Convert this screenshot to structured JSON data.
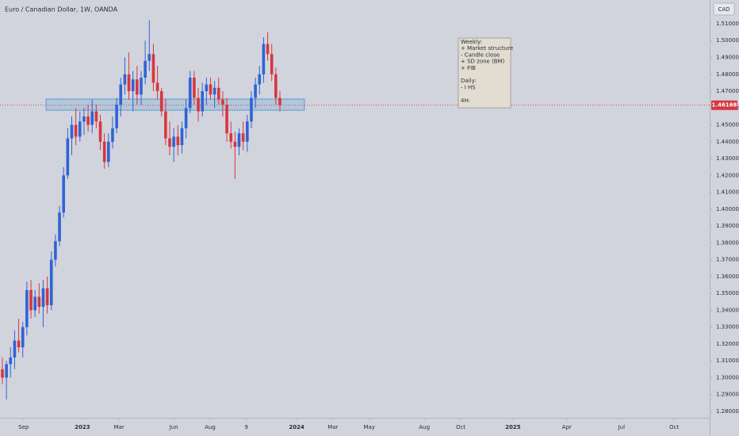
{
  "chart_data": {
    "type": "candlestick",
    "title": "Euro / Canadian Dollar, 1W, OANDA",
    "currency_label": "CAD",
    "up_color": "#2f63d6",
    "down_color": "#d9363e",
    "x": [
      0,
      1,
      2,
      3,
      4,
      5,
      6,
      7,
      8,
      9,
      10,
      11,
      12,
      13,
      14,
      15,
      16,
      17,
      18,
      19,
      20,
      21,
      22,
      23,
      24,
      25,
      26,
      27,
      28,
      29,
      30,
      31,
      32,
      33,
      34,
      35,
      36,
      37,
      38,
      39,
      40,
      41,
      42,
      43,
      44,
      45,
      46,
      47,
      48,
      49,
      50,
      51,
      52,
      53,
      54,
      55,
      56,
      57,
      58,
      59,
      60,
      61,
      62,
      63,
      64,
      65,
      66,
      67,
      68
    ],
    "open": [
      1.305,
      1.3,
      1.308,
      1.312,
      1.322,
      1.318,
      1.33,
      1.352,
      1.34,
      1.348,
      1.342,
      1.353,
      1.343,
      1.37,
      1.381,
      1.398,
      1.42,
      1.442,
      1.45,
      1.443,
      1.452,
      1.455,
      1.45,
      1.458,
      1.452,
      1.44,
      1.428,
      1.44,
      1.448,
      1.462,
      1.474,
      1.48,
      1.47,
      1.477,
      1.468,
      1.478,
      1.488,
      1.492,
      1.475,
      1.47,
      1.458,
      1.442,
      1.437,
      1.443,
      1.438,
      1.448,
      1.46,
      1.478,
      1.466,
      1.458,
      1.47,
      1.474,
      1.468,
      1.472,
      1.465,
      1.462,
      1.445,
      1.44,
      1.437,
      1.445,
      1.44,
      1.452,
      1.466,
      1.474,
      1.48,
      1.498,
      1.492,
      1.48,
      1.466
    ],
    "high": [
      1.312,
      1.31,
      1.318,
      1.328,
      1.335,
      1.333,
      1.357,
      1.358,
      1.352,
      1.356,
      1.358,
      1.36,
      1.375,
      1.385,
      1.402,
      1.425,
      1.448,
      1.455,
      1.46,
      1.458,
      1.46,
      1.462,
      1.465,
      1.462,
      1.456,
      1.445,
      1.445,
      1.455,
      1.466,
      1.478,
      1.49,
      1.493,
      1.482,
      1.485,
      1.482,
      1.5,
      1.512,
      1.498,
      1.485,
      1.472,
      1.465,
      1.452,
      1.448,
      1.45,
      1.452,
      1.465,
      1.482,
      1.482,
      1.472,
      1.475,
      1.478,
      1.478,
      1.476,
      1.478,
      1.47,
      1.466,
      1.452,
      1.446,
      1.448,
      1.452,
      1.456,
      1.47,
      1.478,
      1.485,
      1.502,
      1.505,
      1.498,
      1.484,
      1.47
    ],
    "low": [
      1.296,
      1.287,
      1.3,
      1.305,
      1.315,
      1.312,
      1.325,
      1.335,
      1.336,
      1.338,
      1.33,
      1.338,
      1.34,
      1.366,
      1.378,
      1.395,
      1.418,
      1.432,
      1.438,
      1.44,
      1.444,
      1.446,
      1.445,
      1.448,
      1.435,
      1.424,
      1.425,
      1.436,
      1.445,
      1.455,
      1.468,
      1.465,
      1.458,
      1.462,
      1.462,
      1.474,
      1.482,
      1.47,
      1.465,
      1.455,
      1.438,
      1.432,
      1.428,
      1.432,
      1.433,
      1.442,
      1.457,
      1.462,
      1.452,
      1.455,
      1.462,
      1.465,
      1.46,
      1.462,
      1.455,
      1.44,
      1.436,
      1.418,
      1.432,
      1.435,
      1.434,
      1.448,
      1.46,
      1.468,
      1.475,
      1.488,
      1.476,
      1.462,
      1.458
    ],
    "close": [
      1.3,
      1.308,
      1.312,
      1.322,
      1.318,
      1.33,
      1.352,
      1.34,
      1.348,
      1.342,
      1.353,
      1.343,
      1.37,
      1.381,
      1.398,
      1.42,
      1.442,
      1.45,
      1.443,
      1.452,
      1.455,
      1.45,
      1.458,
      1.452,
      1.44,
      1.428,
      1.44,
      1.448,
      1.462,
      1.474,
      1.48,
      1.47,
      1.477,
      1.468,
      1.478,
      1.488,
      1.492,
      1.475,
      1.47,
      1.458,
      1.442,
      1.437,
      1.443,
      1.438,
      1.448,
      1.46,
      1.478,
      1.466,
      1.458,
      1.47,
      1.474,
      1.468,
      1.472,
      1.465,
      1.462,
      1.445,
      1.44,
      1.437,
      1.445,
      1.44,
      1.452,
      1.466,
      1.474,
      1.48,
      1.498,
      1.492,
      1.48,
      1.466,
      1.46168
    ],
    "xlim": [
      -0.58,
      173.3
    ],
    "ylim": [
      1.2762,
      1.5241
    ],
    "xticks": [
      {
        "value": 5.2,
        "label": "Sep"
      },
      {
        "value": 19.6,
        "label": "2023"
      },
      {
        "value": 28.6,
        "label": "Mar"
      },
      {
        "value": 42.0,
        "label": "Jun"
      },
      {
        "value": 50.9,
        "label": "Aug"
      },
      {
        "value": 59.8,
        "label": "9"
      },
      {
        "value": 72.1,
        "label": "2024"
      },
      {
        "value": 81.0,
        "label": "Mar"
      },
      {
        "value": 89.9,
        "label": "May"
      },
      {
        "value": 103.4,
        "label": "Aug"
      },
      {
        "value": 112.3,
        "label": "Oct"
      },
      {
        "value": 125.1,
        "label": "2025"
      },
      {
        "value": 138.3,
        "label": "Apr"
      },
      {
        "value": 151.7,
        "label": "Jul"
      },
      {
        "value": 164.6,
        "label": "Oct"
      }
    ],
    "yticks": [
      {
        "value": 1.28,
        "label": "1.28000"
      },
      {
        "value": 1.29,
        "label": "1.29000"
      },
      {
        "value": 1.3,
        "label": "1.30000"
      },
      {
        "value": 1.31,
        "label": "1.31000"
      },
      {
        "value": 1.32,
        "label": "1.32000"
      },
      {
        "value": 1.33,
        "label": "1.33000"
      },
      {
        "value": 1.34,
        "label": "1.34000"
      },
      {
        "value": 1.35,
        "label": "1.35000"
      },
      {
        "value": 1.36,
        "label": "1.36000"
      },
      {
        "value": 1.37,
        "label": "1.37000"
      },
      {
        "value": 1.38,
        "label": "1.38000"
      },
      {
        "value": 1.39,
        "label": "1.39000"
      },
      {
        "value": 1.4,
        "label": "1.40000"
      },
      {
        "value": 1.41,
        "label": "1.41000"
      },
      {
        "value": 1.42,
        "label": "1.42000"
      },
      {
        "value": 1.43,
        "label": "1.43000"
      },
      {
        "value": 1.44,
        "label": "1.44000"
      },
      {
        "value": 1.45,
        "label": "1.45000"
      },
      {
        "value": 1.46,
        "label": "1.46000"
      },
      {
        "value": 1.47,
        "label": "1.47000"
      },
      {
        "value": 1.48,
        "label": "1.48000"
      },
      {
        "value": 1.49,
        "label": "1.49000"
      },
      {
        "value": 1.5,
        "label": "1.50000"
      },
      {
        "value": 1.51,
        "label": "1.51000"
      }
    ],
    "last_price": 1.46168,
    "zone": {
      "x": [
        10.7,
        74.0
      ],
      "y": [
        1.4587,
        1.4653
      ],
      "color": "#5b9bd5"
    },
    "note": [
      {
        "heading": "Weekly:",
        "items": [
          "+ Market structure",
          "- Candle close",
          "+ SD zone (BM)",
          "+ FIB"
        ]
      },
      {
        "heading": "Daily:",
        "items": [
          "- I HS"
        ]
      },
      {
        "heading": "4H:",
        "items": []
      }
    ]
  }
}
